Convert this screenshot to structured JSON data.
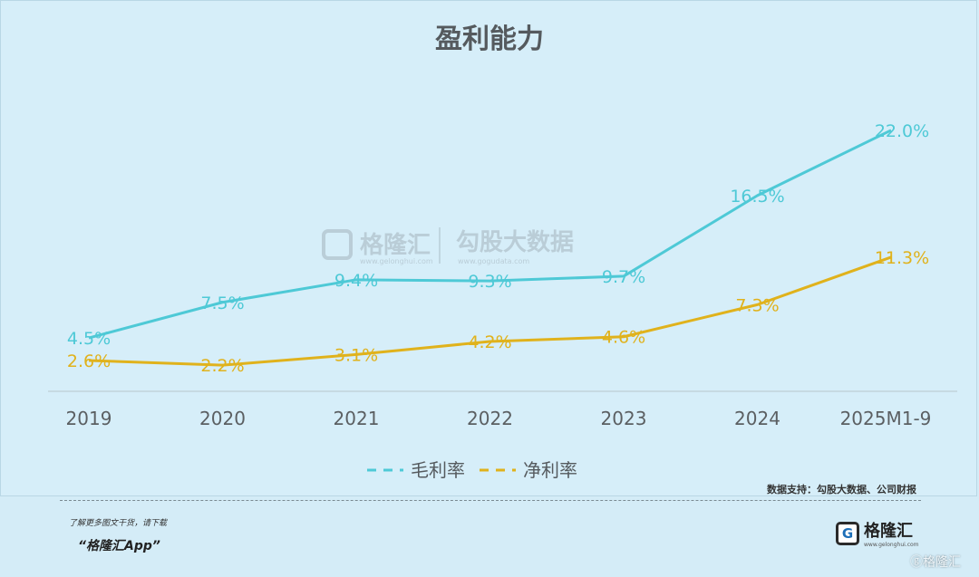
{
  "chart_data": {
    "type": "line",
    "title": "盈利能力",
    "categories": [
      "2019",
      "2020",
      "2021",
      "2022",
      "2023",
      "2024",
      "2025M1-9"
    ],
    "series": [
      {
        "name": "毛利率",
        "color": "#4ec9d6",
        "values": [
          4.5,
          7.5,
          9.4,
          9.3,
          9.7,
          16.5,
          22.0
        ],
        "labels": [
          "4.5%",
          "7.5%",
          "9.4%",
          "9.3%",
          "9.7%",
          "16.5%",
          "22.0%"
        ]
      },
      {
        "name": "净利率",
        "color": "#e0b21c",
        "values": [
          2.6,
          2.2,
          3.1,
          4.2,
          4.6,
          7.3,
          11.3
        ],
        "labels": [
          "2.6%",
          "2.2%",
          "3.1%",
          "4.2%",
          "4.6%",
          "7.3%",
          "11.3%"
        ]
      }
    ],
    "ylim": [
      0,
      24
    ],
    "xlabel": "",
    "ylabel": "",
    "legend": "bottom-center",
    "source": "数据支持：勾股大数据、公司财报"
  },
  "watermark": {
    "brand": "格隆汇",
    "brand_url": "www.gelonghui.com",
    "data_brand": "勾股大数据",
    "data_url": "www.gogudata.com"
  },
  "footer": {
    "line1": "了解更多图文干货，请下载",
    "line2": "“格隆汇App”",
    "logo_glyph": "G",
    "logo_name": "格隆汇",
    "logo_url": "www.gelonghui.com",
    "corner": "ⓖ格隆汇"
  }
}
